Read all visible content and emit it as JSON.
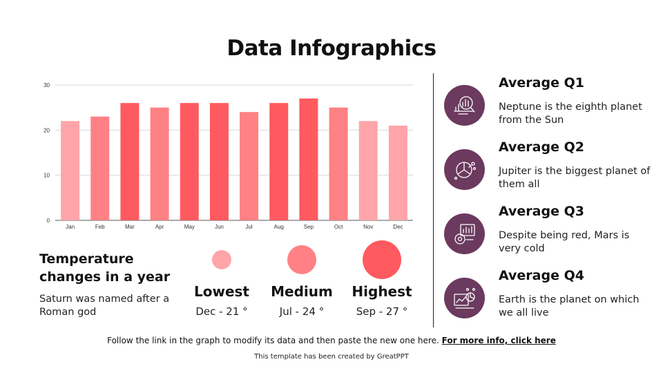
{
  "title": "Data Infographics",
  "chart_data": {
    "type": "bar",
    "categories": [
      "Jan",
      "Feb",
      "Mar",
      "Apr",
      "May",
      "Jun",
      "Jul",
      "Aug",
      "Sep",
      "Oct",
      "Nov",
      "Dec"
    ],
    "values": [
      22,
      23,
      26,
      25,
      26,
      26,
      24,
      26,
      27,
      25,
      22,
      21
    ],
    "bar_colors": [
      "#ffa5a9",
      "#ff8185",
      "#ff5a5f",
      "#ff8185",
      "#ff5a5f",
      "#ff5a5f",
      "#ff8185",
      "#ff5a5f",
      "#ff5a5f",
      "#ff8185",
      "#ffa5a9",
      "#ffa5a9"
    ],
    "ylim": [
      0,
      30
    ],
    "yticks": [
      "0",
      "10",
      "20",
      "30"
    ],
    "grid": true,
    "title": "",
    "xlabel": "",
    "ylabel": ""
  },
  "temperature": {
    "title": "Temperature changes in a year",
    "description": "Saturn was named after a Roman god"
  },
  "legend": [
    {
      "label": "Lowest",
      "value": "Dec - 21 °",
      "color": "#ffa5a9"
    },
    {
      "label": "Medium",
      "value": "Jul - 24 °",
      "color": "#ff8185"
    },
    {
      "label": "Highest",
      "value": "Sep - 27 °",
      "color": "#ff5a5f"
    }
  ],
  "averages": [
    {
      "title": "Average Q1",
      "description": "Neptune is the eighth planet from the Sun",
      "icon": "chart-magnifier-icon"
    },
    {
      "title": "Average Q2",
      "description": "Jupiter is the biggest planet of them all",
      "icon": "pie-network-icon"
    },
    {
      "title": "Average Q3",
      "description": "Despite being red, Mars is very cold",
      "icon": "dashboard-gauge-icon"
    },
    {
      "title": "Average Q4",
      "description": "Earth is the planet on which we all live",
      "icon": "analytics-graph-icon"
    }
  ],
  "footer": {
    "text": "Follow the link in the graph to modify its data and then paste the new one here.",
    "link": "For more info, click here"
  },
  "credit": "This template has been created by GreatPPT",
  "colors": {
    "accent_purple": "#6b3a5e",
    "bar_dark": "#ff5a5f",
    "bar_mid": "#ff8185",
    "bar_light": "#ffa5a9"
  }
}
